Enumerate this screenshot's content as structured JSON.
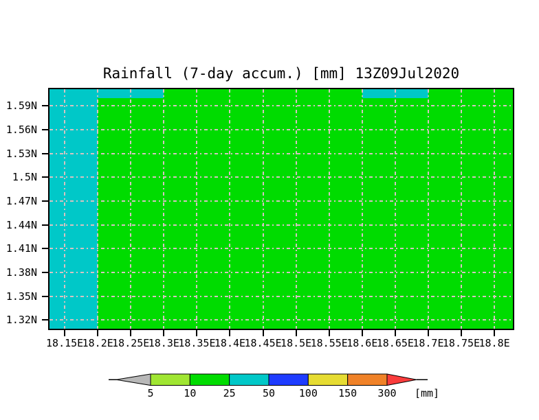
{
  "page": {
    "background": "#FFFFFF",
    "text_color": "#000000"
  },
  "chart_data": {
    "type": "heatmap",
    "title": "Rainfall (7-day accum.) [mm] 13Z09Jul2020",
    "x_axis": {
      "tick_labels": [
        "18.15E",
        "18.2E",
        "18.25E",
        "18.3E",
        "18.35E",
        "18.4E",
        "18.45E",
        "18.5E",
        "18.55E",
        "18.6E",
        "18.65E",
        "18.7E",
        "18.75E",
        "18.8E"
      ],
      "tick_values": [
        18.15,
        18.2,
        18.25,
        18.3,
        18.35,
        18.4,
        18.45,
        18.5,
        18.55,
        18.6,
        18.65,
        18.7,
        18.75,
        18.8
      ],
      "range": [
        18.127,
        18.828
      ]
    },
    "y_axis": {
      "tick_labels": [
        "1.59N",
        "1.56N",
        "1.53N",
        "1.5N",
        "1.47N",
        "1.44N",
        "1.41N",
        "1.38N",
        "1.35N",
        "1.32N"
      ],
      "tick_values": [
        1.59,
        1.56,
        1.53,
        1.5,
        1.47,
        1.44,
        1.41,
        1.38,
        1.35,
        1.32
      ],
      "range": [
        1.309,
        1.611
      ]
    },
    "grid": {
      "visible": true,
      "style": "dash-dot",
      "color": "#D6C2C2"
    },
    "palette": {
      "gray": "#B8B8B8",
      "yellow_green": "#A0E632",
      "green": "#00DC00",
      "cyan": "#00C8C8",
      "blue": "#1E3CFF",
      "yellow": "#E6DC32",
      "orange": "#F08228",
      "red": "#FA3C3C"
    },
    "background_fill": {
      "color": "green",
      "value_range_mm": "10-25"
    },
    "regions": [
      {
        "color": "cyan",
        "value_range_mm": "25-50",
        "lon": [
          18.127,
          18.2
        ],
        "lat": [
          1.309,
          1.611
        ]
      },
      {
        "color": "cyan",
        "value_range_mm": "25-50",
        "lon": [
          18.2,
          18.3
        ],
        "lat": [
          1.5995,
          1.611
        ]
      },
      {
        "color": "cyan",
        "value_range_mm": "25-50",
        "lon": [
          18.6,
          18.7
        ],
        "lat": [
          1.5995,
          1.611
        ]
      }
    ],
    "colorbar": {
      "tick_labels": [
        "5",
        "10",
        "25",
        "50",
        "100",
        "150",
        "300"
      ],
      "unit_label": "[mm]",
      "segments": [
        {
          "shape": "arrow-left",
          "color": "gray",
          "range_mm": "<5"
        },
        {
          "shape": "rect",
          "color": "yellow_green",
          "range_mm": "5-10"
        },
        {
          "shape": "rect",
          "color": "green",
          "range_mm": "10-25"
        },
        {
          "shape": "rect",
          "color": "cyan",
          "range_mm": "25-50"
        },
        {
          "shape": "rect",
          "color": "blue",
          "range_mm": "50-100"
        },
        {
          "shape": "rect",
          "color": "yellow",
          "range_mm": "100-150"
        },
        {
          "shape": "rect",
          "color": "orange",
          "range_mm": "150-300"
        },
        {
          "shape": "arrow-right",
          "color": "red",
          "range_mm": ">300"
        }
      ]
    }
  }
}
